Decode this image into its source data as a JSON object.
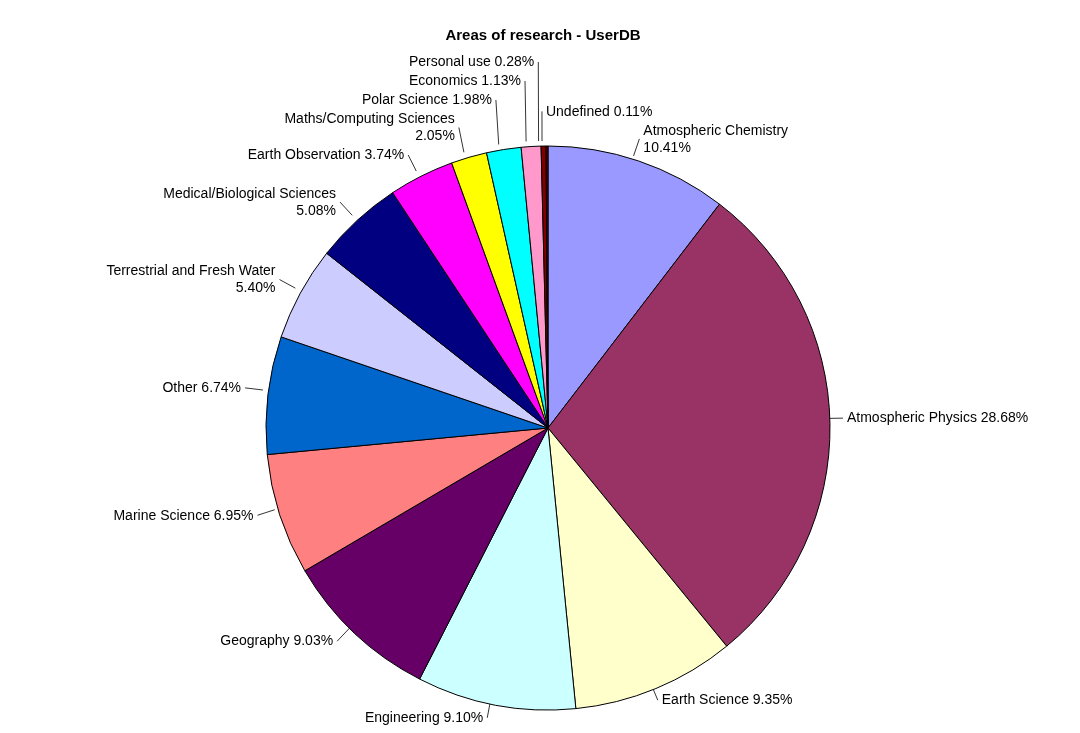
{
  "chart_data": {
    "type": "pie",
    "title": "Areas of research - UserDB",
    "categories": [
      "Atmospheric Chemistry",
      "Atmospheric Physics",
      "Earth Science",
      "Engineering",
      "Geography",
      "Marine Science",
      "Other",
      "Terrestrial and Fresh Water",
      "Medical/Biological Sciences",
      "Earth Observation",
      "Maths/Computing Sciences",
      "Polar Science",
      "Economics",
      "Personal use",
      "Undefined"
    ],
    "values": [
      10.41,
      28.68,
      9.35,
      9.1,
      9.03,
      6.95,
      6.74,
      5.4,
      5.08,
      3.74,
      2.05,
      1.98,
      1.13,
      0.28,
      0.11
    ],
    "value_labels": [
      "10.41%",
      "28.68%",
      "9.35%",
      "9.10%",
      "9.03%",
      "6.95%",
      "6.74%",
      "5.40%",
      "5.08%",
      "3.74%",
      "2.05%",
      "1.98%",
      "1.13%",
      "0.28%",
      "0.11%"
    ],
    "colors": [
      "#9999ff",
      "#993366",
      "#ffffcc",
      "#ccffff",
      "#660066",
      "#ff8080",
      "#0066cc",
      "#ccccff",
      "#000080",
      "#ff00ff",
      "#ffff00",
      "#00ffff",
      "#ff99cc",
      "#800000",
      "#660000"
    ]
  }
}
